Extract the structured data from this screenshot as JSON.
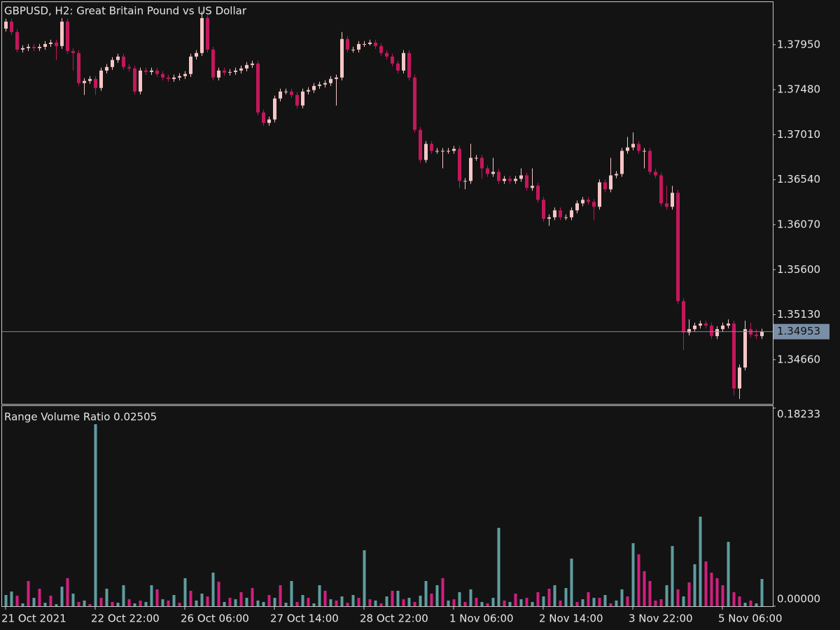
{
  "chart_data": [
    {
      "type": "candlestick",
      "title": "GBPUSD, H2:  Great Britain Pound vs US Dollar",
      "x": [
        "21 Oct 2021",
        null,
        null,
        null,
        null,
        null,
        null,
        null,
        null,
        null,
        null,
        null,
        null,
        null,
        null,
        null,
        "22 Oct 22:00",
        null,
        null,
        null,
        null,
        null,
        null,
        null,
        null,
        null,
        null,
        null,
        null,
        null,
        null,
        null,
        "26 Oct 06:00",
        null,
        null,
        null,
        null,
        null,
        null,
        null,
        null,
        null,
        null,
        null,
        null,
        null,
        null,
        null,
        "27 Oct 14:00",
        null,
        null,
        null,
        null,
        null,
        null,
        null,
        null,
        null,
        null,
        null,
        null,
        null,
        null,
        null,
        "28 Oct 22:00",
        null,
        null,
        null,
        null,
        null,
        null,
        null,
        null,
        null,
        null,
        null,
        null,
        null,
        null,
        null,
        "1 Nov 06:00",
        null,
        null,
        null,
        null,
        null,
        null,
        null,
        null,
        null,
        null,
        null,
        null,
        null,
        null,
        null,
        "2 Nov 14:00",
        null,
        null,
        null,
        null,
        null,
        null,
        null,
        null,
        null,
        null,
        null,
        null,
        null,
        null,
        null,
        "3 Nov 22:00",
        null,
        null,
        null,
        null,
        null,
        null,
        null,
        null,
        null,
        null,
        null,
        null,
        null,
        null,
        null,
        "5 Nov 06:00",
        null,
        null,
        null,
        null,
        null,
        null,
        null
      ],
      "open": [
        1.38118,
        1.38191,
        1.38082,
        1.37899,
        1.37914,
        1.37928,
        1.37914,
        1.37928,
        1.37957,
        1.37972,
        1.37936,
        1.38191,
        1.37884,
        1.37863,
        1.37549,
        1.37571,
        1.37592,
        1.37498,
        1.3768,
        1.37717,
        1.3779,
        1.37826,
        1.37717,
        1.37702,
        1.37461,
        1.3768,
        1.37665,
        1.3768,
        1.37644,
        1.37607,
        1.37592,
        1.37607,
        1.37622,
        1.37644,
        1.37826,
        1.37863,
        1.38228,
        1.37899,
        1.37607,
        1.3768,
        1.37658,
        1.37665,
        1.3768,
        1.37702,
        1.37738,
        1.37753,
        1.37242,
        1.37133,
        1.37169,
        1.37388,
        1.37461,
        1.37461,
        1.37425,
        1.37315,
        1.37461,
        1.37476,
        1.37519,
        1.37534,
        1.37549,
        1.37592,
        1.37607,
        1.38009,
        1.37899,
        1.37899,
        1.37957,
        1.37957,
        1.37972,
        1.37936,
        1.37863,
        1.37826,
        1.37753,
        1.3768,
        1.37863,
        1.37607,
        1.3706,
        1.36746,
        1.36914,
        1.36841,
        1.36841,
        1.36841,
        1.36841,
        1.36862,
        1.36527,
        1.36527,
        1.36768,
        1.36768,
        1.36658,
        1.366,
        1.36622,
        1.36527,
        1.36549,
        1.36527,
        1.36549,
        1.36585,
        1.36454,
        1.36476,
        1.3633,
        1.36132,
        1.36147,
        1.3622,
        1.36147,
        1.36147,
        1.3622,
        1.36293,
        1.3633,
        1.36308,
        1.36257,
        1.36512,
        1.36439,
        1.36585,
        1.366,
        1.36841,
        1.36877,
        1.36914,
        1.36841,
        1.36841,
        1.36622,
        1.36585,
        1.36293,
        1.36257,
        1.36403,
        1.35271,
        1.34943,
        1.34979,
        1.35016,
        1.35037,
        1.35016,
        1.34906,
        1.34979,
        1.35016,
        1.35037,
        1.34359,
        1.34578,
        1.34979,
        1.34921,
        1.34906
      ],
      "high": [
        1.38221,
        1.38221,
        1.38112,
        1.37944,
        1.37958,
        1.37958,
        1.37958,
        1.37987,
        1.38002,
        1.38002,
        1.38228,
        1.38221,
        1.37914,
        1.37893,
        1.37601,
        1.37622,
        1.37622,
        1.3771,
        1.37747,
        1.3782,
        1.37856,
        1.37856,
        1.37747,
        1.37732,
        1.3771,
        1.3771,
        1.3771,
        1.3771,
        1.37674,
        1.37637,
        1.37637,
        1.37652,
        1.37674,
        1.37856,
        1.37893,
        1.383,
        1.38258,
        1.37929,
        1.3771,
        1.3771,
        1.37695,
        1.3771,
        1.37732,
        1.37768,
        1.37783,
        1.37783,
        1.37272,
        1.37199,
        1.37418,
        1.37491,
        1.37491,
        1.37491,
        1.37455,
        1.37491,
        1.37506,
        1.37549,
        1.37564,
        1.37579,
        1.37622,
        1.37637,
        1.38082,
        1.38039,
        1.37929,
        1.37987,
        1.37987,
        1.38002,
        1.38002,
        1.37966,
        1.37893,
        1.37856,
        1.37783,
        1.37893,
        1.37893,
        1.37637,
        1.3709,
        1.36944,
        1.36944,
        1.36871,
        1.36871,
        1.36871,
        1.36892,
        1.36892,
        1.36557,
        1.36914,
        1.36798,
        1.36798,
        1.36688,
        1.36768,
        1.36652,
        1.36579,
        1.36579,
        1.36579,
        1.36658,
        1.36615,
        1.36658,
        1.36506,
        1.3636,
        1.36177,
        1.3625,
        1.3625,
        1.36177,
        1.3625,
        1.36323,
        1.3636,
        1.3636,
        1.36338,
        1.36542,
        1.36542,
        1.36768,
        1.3663,
        1.36871,
        1.36987,
        1.37033,
        1.36944,
        1.36871,
        1.36871,
        1.36652,
        1.36615,
        1.36476,
        1.36476,
        1.36433,
        1.35301,
        1.35081,
        1.35046,
        1.35067,
        1.35067,
        1.35046,
        1.35009,
        1.35046,
        1.35081,
        1.35067,
        1.34608,
        1.35067,
        1.35046,
        1.34979,
        1.34983
      ],
      "low": [
        1.38088,
        1.38052,
        1.37869,
        1.37869,
        1.37884,
        1.37884,
        1.37884,
        1.37898,
        1.37927,
        1.3779,
        1.37906,
        1.37854,
        1.3768,
        1.37519,
        1.37425,
        1.37541,
        1.37425,
        1.37468,
        1.3765,
        1.37687,
        1.3776,
        1.37687,
        1.37672,
        1.37431,
        1.37431,
        1.37635,
        1.37635,
        1.37614,
        1.37577,
        1.37562,
        1.37562,
        1.37577,
        1.37592,
        1.37614,
        1.37796,
        1.37833,
        1.37869,
        1.37577,
        1.37577,
        1.37628,
        1.37628,
        1.37635,
        1.3765,
        1.37672,
        1.37708,
        1.37212,
        1.37103,
        1.37103,
        1.37139,
        1.37358,
        1.37431,
        1.37395,
        1.37285,
        1.37285,
        1.37431,
        1.37446,
        1.37489,
        1.37504,
        1.37519,
        1.37315,
        1.37577,
        1.37869,
        1.37869,
        1.37869,
        1.37927,
        1.37942,
        1.37906,
        1.37833,
        1.37796,
        1.37723,
        1.3765,
        1.3765,
        1.37577,
        1.3703,
        1.36716,
        1.36716,
        1.36811,
        1.36811,
        1.36658,
        1.36811,
        1.36811,
        1.36454,
        1.3644,
        1.36497,
        1.36738,
        1.36549,
        1.3657,
        1.3657,
        1.36497,
        1.36497,
        1.36497,
        1.36497,
        1.36519,
        1.36424,
        1.36424,
        1.363,
        1.36102,
        1.36058,
        1.36117,
        1.36117,
        1.36117,
        1.36117,
        1.3619,
        1.36263,
        1.36278,
        1.36117,
        1.36227,
        1.36409,
        1.36409,
        1.36555,
        1.3657,
        1.36811,
        1.36847,
        1.36811,
        1.36658,
        1.36592,
        1.36555,
        1.36263,
        1.36227,
        1.36227,
        1.35241,
        1.3476,
        1.34913,
        1.34949,
        1.34986,
        1.34986,
        1.34876,
        1.34876,
        1.34949,
        1.34986,
        1.34286,
        1.3425,
        1.34548,
        1.34891,
        1.34876,
        1.34876
      ],
      "close": [
        1.38191,
        1.38082,
        1.37899,
        1.37914,
        1.37928,
        1.37914,
        1.37928,
        1.37957,
        1.37972,
        1.37936,
        1.38191,
        1.37884,
        1.37863,
        1.37549,
        1.37571,
        1.37592,
        1.37498,
        1.3768,
        1.37717,
        1.3779,
        1.37826,
        1.37717,
        1.37702,
        1.37461,
        1.3768,
        1.37665,
        1.3768,
        1.37644,
        1.37607,
        1.37592,
        1.37607,
        1.37622,
        1.37644,
        1.37826,
        1.37863,
        1.38228,
        1.37899,
        1.37607,
        1.3768,
        1.37658,
        1.37665,
        1.3768,
        1.37702,
        1.37738,
        1.37753,
        1.37242,
        1.37133,
        1.37169,
        1.37388,
        1.37461,
        1.37461,
        1.37425,
        1.37315,
        1.37461,
        1.37476,
        1.37519,
        1.37534,
        1.37549,
        1.37592,
        1.37607,
        1.38009,
        1.37899,
        1.37899,
        1.37957,
        1.37957,
        1.37972,
        1.37936,
        1.37863,
        1.37826,
        1.37753,
        1.3768,
        1.37863,
        1.37607,
        1.3706,
        1.36746,
        1.36914,
        1.36841,
        1.36841,
        1.36841,
        1.36841,
        1.36862,
        1.36527,
        1.36527,
        1.36768,
        1.36768,
        1.36658,
        1.366,
        1.36622,
        1.36527,
        1.36549,
        1.36527,
        1.36549,
        1.36585,
        1.36454,
        1.36476,
        1.3633,
        1.36132,
        1.36147,
        1.3622,
        1.36147,
        1.36147,
        1.3622,
        1.36293,
        1.3633,
        1.36308,
        1.36257,
        1.36512,
        1.36439,
        1.36585,
        1.366,
        1.36841,
        1.36877,
        1.36914,
        1.36841,
        1.36841,
        1.36622,
        1.36585,
        1.36293,
        1.36257,
        1.36403,
        1.35271,
        1.34943,
        1.34979,
        1.35016,
        1.35037,
        1.35016,
        1.34906,
        1.34979,
        1.35016,
        1.35037,
        1.34359,
        1.34578,
        1.34979,
        1.34921,
        1.34906,
        1.34953
      ],
      "up_color": "#f7c6c6",
      "down_color": "#c2185b",
      "price_line_color": "#7a8ea6",
      "ylim": [
        1.34198,
        1.38395
      ],
      "yticks": [
        {
          "value": 1.3466,
          "label": "1.34660"
        },
        {
          "value": 1.3513,
          "label": "1.35130"
        },
        {
          "value": 1.356,
          "label": "1.35600"
        },
        {
          "value": 1.3607,
          "label": "1.36070"
        },
        {
          "value": 1.3654,
          "label": "1.36540"
        },
        {
          "value": 1.3701,
          "label": "1.37010"
        },
        {
          "value": 1.3748,
          "label": "1.37480"
        },
        {
          "value": 1.3795,
          "label": "1.37950"
        }
      ]
    },
    {
      "type": "bar",
      "title": "Range Volume Ratio 0.02505",
      "values": [
        0.0103,
        0.0135,
        0.0097,
        0.0026,
        0.0232,
        0.0077,
        0.0161,
        0.0032,
        0.0097,
        0.0019,
        0.018,
        0.0258,
        0.0116,
        0.0039,
        0.0052,
        0.0019,
        0.1675,
        0.0077,
        0.0161,
        0.0039,
        0.0032,
        0.0193,
        0.0064,
        0.0026,
        0.0052,
        0.0039,
        0.0193,
        0.0155,
        0.0064,
        0.0052,
        0.0103,
        0.0032,
        0.0258,
        0.0142,
        0.0052,
        0.0116,
        0.009,
        0.0309,
        0.0225,
        0.0039,
        0.0077,
        0.0064,
        0.0129,
        0.0077,
        0.0167,
        0.0052,
        0.0039,
        0.0103,
        0.0077,
        0.0193,
        0.0032,
        0.0232,
        0.0039,
        0.0103,
        0.0077,
        0.0026,
        0.0193,
        0.0142,
        0.0064,
        0.0052,
        0.009,
        0.0032,
        0.0103,
        0.0077,
        0.0515,
        0.0064,
        0.0052,
        0.0026,
        0.009,
        0.0142,
        0.0142,
        0.0064,
        0.0077,
        0.0039,
        0.0097,
        0.0232,
        0.0116,
        0.0193,
        0.0258,
        0.0052,
        0.0064,
        0.0129,
        0.0039,
        0.0155,
        0.0077,
        0.0039,
        0.0026,
        0.0077,
        0.0721,
        0.0052,
        0.0039,
        0.0116,
        0.0064,
        0.0077,
        0.0039,
        0.0129,
        0.009,
        0.0161,
        0.0193,
        0.0052,
        0.0167,
        0.0438,
        0.0039,
        0.0064,
        0.0129,
        0.0077,
        0.0077,
        0.0103,
        0.0026,
        0.0052,
        0.0155,
        0.009,
        0.058,
        0.0477,
        0.0322,
        0.0232,
        0.0052,
        0.0064,
        0.0193,
        0.0554,
        0.0155,
        0.009,
        0.0219,
        0.0386,
        0.0824,
        0.0412,
        0.0309,
        0.0258,
        0.0193,
        0.0592,
        0.0129,
        0.009,
        0.0032,
        0.0052,
        0.0026,
        0.02505
      ],
      "colors": [
        "#5f9ea0",
        "#5f9ea0",
        "#d11f7f",
        "#5f9ea0",
        "#d11f7f",
        "#5f9ea0",
        "#d11f7f",
        "#5f9ea0",
        "#d11f7f",
        "#5f9ea0",
        "#5f9ea0",
        "#d11f7f",
        "#5f9ea0",
        "#d11f7f",
        "#5f9ea0",
        "#d11f7f",
        "#5f9ea0",
        "#d11f7f",
        "#5f9ea0",
        "#d11f7f",
        "#5f9ea0",
        "#5f9ea0",
        "#d11f7f",
        "#5f9ea0",
        "#d11f7f",
        "#5f9ea0",
        "#5f9ea0",
        "#d11f7f",
        "#5f9ea0",
        "#d11f7f",
        "#5f9ea0",
        "#d11f7f",
        "#5f9ea0",
        "#d11f7f",
        "#5f9ea0",
        "#5f9ea0",
        "#d11f7f",
        "#5f9ea0",
        "#d11f7f",
        "#5f9ea0",
        "#d11f7f",
        "#5f9ea0",
        "#d11f7f",
        "#5f9ea0",
        "#d11f7f",
        "#5f9ea0",
        "#5f9ea0",
        "#d11f7f",
        "#5f9ea0",
        "#d11f7f",
        "#5f9ea0",
        "#5f9ea0",
        "#d11f7f",
        "#5f9ea0",
        "#d11f7f",
        "#5f9ea0",
        "#5f9ea0",
        "#d11f7f",
        "#5f9ea0",
        "#d11f7f",
        "#5f9ea0",
        "#d11f7f",
        "#5f9ea0",
        "#d11f7f",
        "#5f9ea0",
        "#d11f7f",
        "#5f9ea0",
        "#d11f7f",
        "#5f9ea0",
        "#d11f7f",
        "#5f9ea0",
        "#d11f7f",
        "#5f9ea0",
        "#d11f7f",
        "#5f9ea0",
        "#5f9ea0",
        "#d11f7f",
        "#5f9ea0",
        "#d11f7f",
        "#5f9ea0",
        "#d11f7f",
        "#5f9ea0",
        "#d11f7f",
        "#5f9ea0",
        "#d11f7f",
        "#5f9ea0",
        "#d11f7f",
        "#5f9ea0",
        "#5f9ea0",
        "#d11f7f",
        "#5f9ea0",
        "#d11f7f",
        "#5f9ea0",
        "#d11f7f",
        "#5f9ea0",
        "#d11f7f",
        "#5f9ea0",
        "#d11f7f",
        "#5f9ea0",
        "#d11f7f",
        "#5f9ea0",
        "#5f9ea0",
        "#d11f7f",
        "#5f9ea0",
        "#d11f7f",
        "#5f9ea0",
        "#d11f7f",
        "#5f9ea0",
        "#d11f7f",
        "#5f9ea0",
        "#5f9ea0",
        "#d11f7f",
        "#5f9ea0",
        "#d11f7f",
        "#d11f7f",
        "#d11f7f",
        "#d11f7f",
        "#d11f7f",
        "#5f9ea0",
        "#5f9ea0",
        "#d11f7f",
        "#5f9ea0",
        "#d11f7f",
        "#5f9ea0",
        "#5f9ea0",
        "#d11f7f",
        "#d11f7f",
        "#d11f7f",
        "#d11f7f",
        "#5f9ea0",
        "#d11f7f",
        "#d11f7f",
        "#5f9ea0",
        "#d11f7f",
        "#5f9ea0",
        "#5f9ea0"
      ],
      "ylim": [
        0,
        0.18233
      ],
      "yticks": [
        {
          "value": 0,
          "label": "0.00000"
        },
        0.18233
      ]
    }
  ]
}
